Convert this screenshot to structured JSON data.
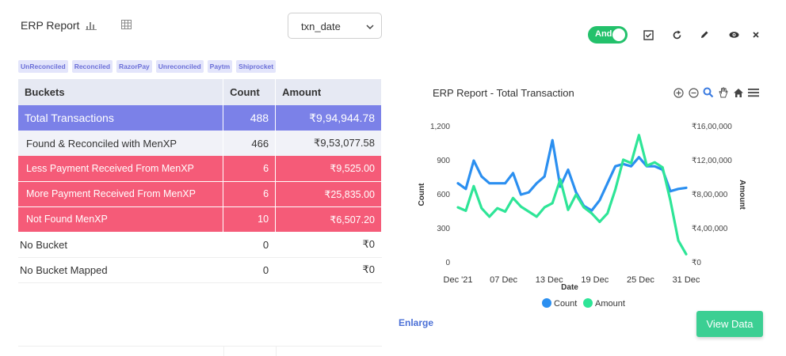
{
  "header": {
    "title": "ERP Report",
    "bar_chart_icon": "bar-chart-icon",
    "grid_icon": "table-grid-icon",
    "select_value": "txn_date"
  },
  "toolbar": {
    "toggle_label": "And",
    "toggle_on": true,
    "icons": [
      "checkbox-icon",
      "refresh-icon",
      "edit-icon",
      "eye-icon",
      "close-icon"
    ]
  },
  "tags": [
    "UnReconciled",
    "Reconciled",
    "RazorPay",
    "Unreconciled",
    "Paytm",
    "Shiprocket"
  ],
  "table": {
    "headers": [
      "Buckets",
      "Count",
      "Amount"
    ],
    "rows": [
      {
        "bucket": "Total  Transactions",
        "count": "488",
        "amount": "₹9,94,944.78",
        "style": "total"
      },
      {
        "bucket": "Found & Reconciled with MenXP",
        "count": "466",
        "amount": "₹9,53,077.58",
        "style": "found"
      },
      {
        "bucket": "Less Payment Received From MenXP",
        "count": "6",
        "amount": "₹9,525.00",
        "style": "red"
      },
      {
        "bucket": "More Payment Received From MenXP",
        "count": "6",
        "amount": "₹25,835.00",
        "style": "red"
      },
      {
        "bucket": "Not Found MenXP",
        "count": "10",
        "amount": "₹6,507.20",
        "style": "red"
      },
      {
        "bucket": "No Bucket",
        "count": "0",
        "amount": "₹0",
        "style": "plain"
      },
      {
        "bucket": "No Bucket Mapped",
        "count": "0",
        "amount": "₹0",
        "style": "plain"
      }
    ]
  },
  "chart_data": {
    "type": "line",
    "title": "ERP Report - Total Transaction",
    "xlabel": "Date",
    "ylabel_left": "Count",
    "ylabel_right": "Amount",
    "x_ticks": [
      "Dec '21",
      "07 Dec",
      "13 Dec",
      "19 Dec",
      "25 Dec",
      "31 Dec"
    ],
    "y_left_ticks": [
      "0",
      "300",
      "600",
      "900",
      "1,200"
    ],
    "y_right_ticks": [
      "₹0",
      "₹4,00,000",
      "₹8,00,000",
      "₹12,00,000",
      "₹16,00,000"
    ],
    "y_left_range": [
      0,
      1200
    ],
    "y_right_range": [
      0,
      1600000
    ],
    "legend": [
      "Count",
      "Amount"
    ],
    "legend_position": "bottom",
    "colors": {
      "count": "#2b8ff0",
      "amount": "#2ee597"
    },
    "series": [
      {
        "name": "Count",
        "axis": "left",
        "values": [
          700,
          650,
          900,
          760,
          700,
          700,
          700,
          790,
          600,
          620,
          700,
          760,
          1080,
          670,
          820,
          620,
          500,
          460,
          550,
          700,
          850,
          870,
          850,
          930,
          850,
          850,
          820,
          630,
          650,
          660
        ]
      },
      {
        "name": "Amount",
        "axis": "right",
        "values": [
          650000,
          610000,
          900000,
          640000,
          540000,
          640000,
          600000,
          760000,
          660000,
          600000,
          540000,
          650000,
          700000,
          980000,
          620000,
          800000,
          650000,
          580000,
          480000,
          580000,
          860000,
          1210000,
          1170000,
          1500000,
          1140000,
          1180000,
          1120000,
          730000,
          260000,
          100000
        ]
      }
    ]
  },
  "footer": {
    "enlarge_label": "Enlarge",
    "view_data_label": "View Data"
  }
}
